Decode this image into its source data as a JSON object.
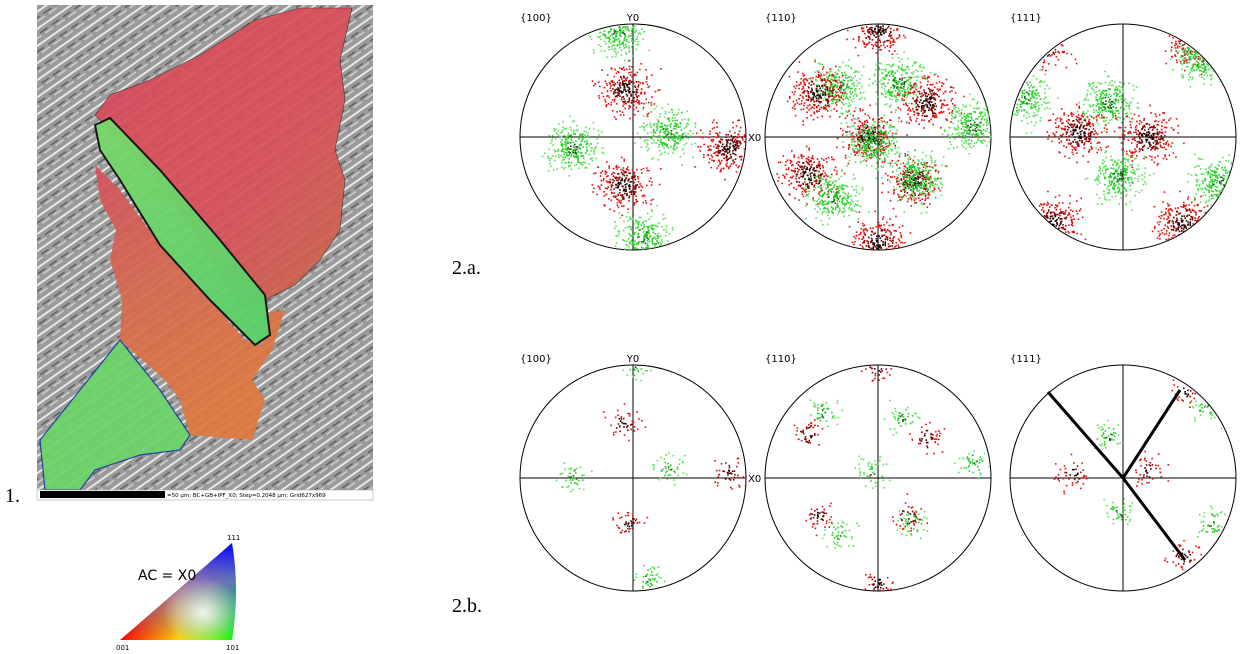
{
  "panel_1": {
    "label": "1.",
    "scale_caption": "=50 µm; BC+GB+IPF_X0; Step=0.2048 µm; Grid627x969"
  },
  "ipf_key": {
    "title": "AC = X0",
    "corner_111": "111",
    "corner_001": "001",
    "corner_101": "101"
  },
  "panel_2a": {
    "label": "2.a.",
    "pole_figures": [
      {
        "title": "{100}",
        "y_axis": "Y0",
        "x_axis": "X0"
      },
      {
        "title": "{110}"
      },
      {
        "title": "{111}"
      }
    ]
  },
  "panel_2b": {
    "label": "2.b.",
    "pole_figures": [
      {
        "title": "{100}",
        "y_axis": "Y0",
        "x_axis": "X0"
      },
      {
        "title": "{110}"
      },
      {
        "title": "{111}"
      }
    ]
  }
}
